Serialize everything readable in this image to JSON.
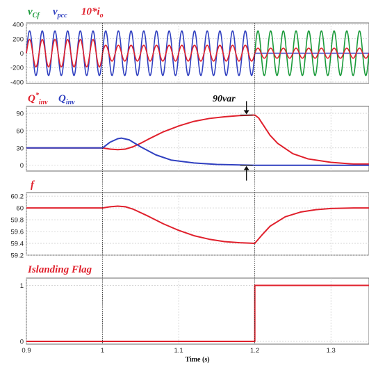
{
  "chart_data": [
    {
      "type": "line",
      "legend": [
        {
          "name": "v",
          "sub": "Cf",
          "color": "#1a9a3a"
        },
        {
          "name": "v",
          "sub": "pcc",
          "color": "#3040c0"
        },
        {
          "name": "10*i",
          "sub": "o",
          "color": "#e0202c"
        }
      ],
      "xlim": [
        0.9,
        1.35
      ],
      "ylim": [
        -420,
        420
      ],
      "yticks": [
        "400",
        "200",
        "0",
        "-200",
        "-400"
      ],
      "ytick_values": [
        400,
        200,
        0,
        -200,
        -400
      ],
      "series": [
        {
          "key": "vcf",
          "color": "#1a9a3a",
          "segments": [
            {
              "x_start": 1.2,
              "x_end": 1.35,
              "amplitude": 310,
              "frequency_hz": 60,
              "offset": 0
            }
          ]
        },
        {
          "key": "vpcc",
          "color": "#3040c0",
          "segments": [
            {
              "x_start": 0.9,
              "x_end": 1.2,
              "amplitude": 310,
              "frequency_hz": 60,
              "offset": 0
            },
            {
              "x_start": 1.2,
              "x_end": 1.35,
              "amplitude": 0,
              "frequency_hz": 60,
              "offset": 0
            }
          ]
        },
        {
          "key": "io",
          "color": "#e0202c",
          "segments": [
            {
              "x_start": 0.9,
              "x_end": 1.0,
              "amplitude": 190,
              "frequency_hz": 60,
              "offset": 0
            },
            {
              "x_start": 1.0,
              "x_end": 1.2,
              "amplitude": 110,
              "frequency_hz": 60,
              "offset": 0
            },
            {
              "x_start": 1.2,
              "x_end": 1.35,
              "amplitude": 70,
              "frequency_hz": 60,
              "offset": 0
            }
          ]
        }
      ]
    },
    {
      "type": "line",
      "legend": [
        {
          "name": "Q",
          "sup": "*",
          "sub": "inv",
          "color": "#e0202c"
        },
        {
          "name": "Q",
          "sub": "inv",
          "color": "#3040c0"
        }
      ],
      "annotation": "90var",
      "xlim": [
        0.9,
        1.35
      ],
      "ylim": [
        -10,
        102
      ],
      "yticks": [
        "90",
        "60",
        "30",
        "0"
      ],
      "ytick_values": [
        90,
        60,
        30,
        0
      ],
      "series": [
        {
          "key": "qref",
          "color": "#e0202c",
          "x": [
            0.9,
            1.0,
            1.01,
            1.02,
            1.03,
            1.04,
            1.05,
            1.06,
            1.08,
            1.1,
            1.12,
            1.14,
            1.16,
            1.18,
            1.2,
            1.205,
            1.21,
            1.22,
            1.23,
            1.25,
            1.27,
            1.3,
            1.33,
            1.35
          ],
          "y": [
            30,
            30,
            28,
            27,
            28,
            32,
            38,
            45,
            58,
            68,
            76,
            81,
            84,
            86,
            87,
            82,
            72,
            52,
            38,
            20,
            11,
            5,
            2,
            2
          ]
        },
        {
          "key": "qinv",
          "color": "#3040c0",
          "x": [
            0.9,
            1.0,
            1.01,
            1.02,
            1.025,
            1.035,
            1.05,
            1.07,
            1.09,
            1.12,
            1.15,
            1.2,
            1.35
          ],
          "y": [
            30,
            30,
            40,
            46,
            47,
            44,
            32,
            18,
            9,
            4,
            1.5,
            0,
            0
          ]
        }
      ]
    },
    {
      "type": "line",
      "legend": [
        {
          "name": "f",
          "color": "#e0202c"
        }
      ],
      "xlim": [
        0.9,
        1.35
      ],
      "ylim": [
        59.2,
        60.26
      ],
      "yticks": [
        "60.2",
        "60",
        "59.8",
        "59.6",
        "59.4",
        "59.2"
      ],
      "ytick_values": [
        60.2,
        60.0,
        59.8,
        59.6,
        59.4,
        59.2
      ],
      "series": [
        {
          "key": "freq",
          "color": "#e0202c",
          "x": [
            0.9,
            1.0,
            1.01,
            1.02,
            1.03,
            1.04,
            1.06,
            1.08,
            1.1,
            1.12,
            1.14,
            1.16,
            1.18,
            1.2,
            1.21,
            1.22,
            1.24,
            1.26,
            1.28,
            1.3,
            1.33,
            1.35
          ],
          "y": [
            60.0,
            60.0,
            60.02,
            60.03,
            60.02,
            59.98,
            59.86,
            59.73,
            59.62,
            59.53,
            59.47,
            59.43,
            59.41,
            59.4,
            59.55,
            59.69,
            59.85,
            59.93,
            59.97,
            59.99,
            60.0,
            60.0
          ]
        }
      ]
    },
    {
      "type": "line",
      "legend": [
        {
          "name": "Islanding Flag",
          "color": "#e0202c"
        }
      ],
      "xlim": [
        0.9,
        1.35
      ],
      "ylim": [
        -0.05,
        1.13
      ],
      "yticks": [
        "1",
        "0"
      ],
      "ytick_values": [
        1,
        0
      ],
      "xticks": [
        "0.9",
        "1",
        "1.1",
        "1.2",
        "1.3"
      ],
      "xtick_values": [
        0.9,
        1.0,
        1.1,
        1.2,
        1.3
      ],
      "xlabel": "Time (s)",
      "series": [
        {
          "key": "flag",
          "color": "#e0202c",
          "x": [
            0.9,
            1.2,
            1.2,
            1.35
          ],
          "y": [
            0,
            0,
            1,
            1
          ]
        }
      ]
    }
  ],
  "event_lines_x": [
    1.0,
    1.2
  ]
}
